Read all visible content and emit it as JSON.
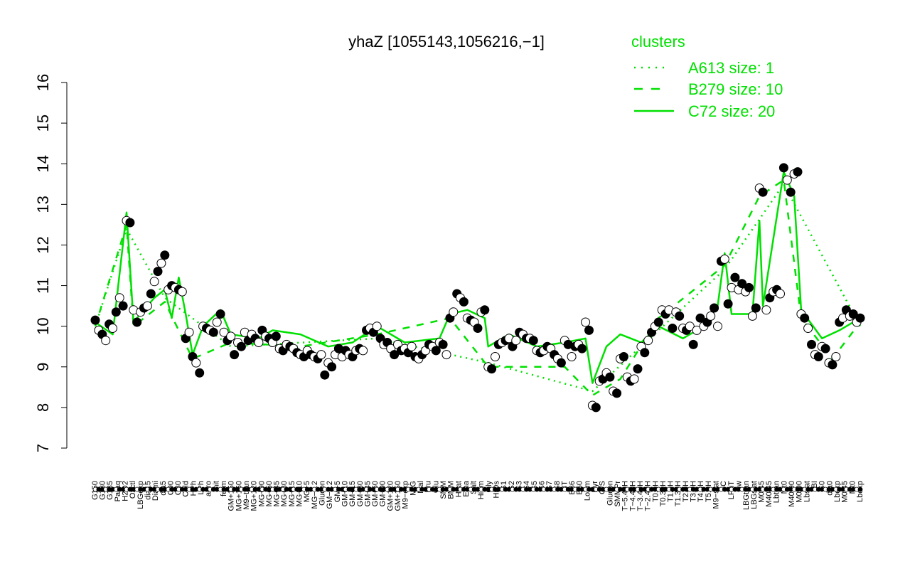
{
  "chart_data": {
    "type": "line",
    "title": "yhaZ [1055143,1056216,−1]",
    "xlabel": "",
    "ylabel": "",
    "ylim": [
      7,
      16
    ],
    "yticks": [
      7,
      8,
      9,
      10,
      11,
      12,
      13,
      14,
      15,
      16
    ],
    "x_tick_labels": [
      "G150",
      "G180",
      "G135",
      "Paraq",
      "H2O2",
      "Oxctl",
      "LBGexp",
      "dia15",
      "Diami",
      "dia5",
      "C90",
      "C30",
      "Cold",
      "HPh",
      "LPh",
      "aero",
      "nit",
      "ferm",
      "GM+150",
      "MG+150",
      "M9−tran",
      "MG+120",
      "MG+90",
      "MG+60",
      "MG+45",
      "MG+30",
      "MG+15",
      "MG+10",
      "MG+5",
      "MG−0.2",
      "Glucon",
      "GM−0.2",
      "GM+5",
      "GM+10",
      "GM+15",
      "GM+30",
      "GM+45",
      "GM+60",
      "GM+90",
      "GM+120",
      "GM+150",
      "M9−exp",
      "M/G",
      "Mal",
      "Fru",
      "Glu",
      "SMM",
      "BMM",
      "Heat",
      "Etha",
      "Salt",
      "HiTm",
      "Gly",
      "HiOs",
      "S1",
      "S2",
      "S3",
      "S4",
      "S5",
      "S6",
      "S7",
      "S8",
      "BT",
      "B36",
      "B60",
      "LoTm",
      "Pyr",
      "G/S",
      "Glucon",
      "SMMPr",
      "T−5.40H",
      "T−4.40H",
      "T−3.40H",
      "T−2.40H",
      "T0.0H",
      "T0.30H",
      "T1.0H",
      "T1.30H",
      "T2.0H",
      "T3.0H",
      "T4.0H",
      "T5.0H",
      "M9−stat",
      "BC",
      "LPhT",
      "Sw",
      "LBGtran",
      "LBGstat",
      "M0t45",
      "M40t45",
      "Lbtran",
      "Mt0",
      "M40t90",
      "M0t90",
      "Lbstat",
      "BI",
      "S0",
      "dia0",
      "Lbexp",
      "M0t45",
      "Mt0",
      "Lbexp"
    ],
    "legend": {
      "title": "clusters",
      "placement": "top-right",
      "entries": [
        {
          "label": "A613 size: 1",
          "style": "dotted"
        },
        {
          "label": "B279 size: 10",
          "style": "dashed"
        },
        {
          "label": "C72 size: 20",
          "style": "solid"
        }
      ]
    },
    "points": [
      [
        1,
        10.15
      ],
      [
        2,
        9.9
      ],
      [
        3,
        9.8
      ],
      [
        4,
        9.65
      ],
      [
        5,
        10.05
      ],
      [
        6,
        9.95
      ],
      [
        7,
        10.35
      ],
      [
        8,
        10.7
      ],
      [
        9,
        10.5
      ],
      [
        10,
        12.6
      ],
      [
        11,
        12.55
      ],
      [
        12,
        10.4
      ],
      [
        13,
        10.1
      ],
      [
        14,
        10.35
      ],
      [
        15,
        10.45
      ],
      [
        16,
        10.5
      ],
      [
        17,
        10.8
      ],
      [
        18,
        11.1
      ],
      [
        19,
        11.35
      ],
      [
        20,
        11.55
      ],
      [
        21,
        11.75
      ],
      [
        22,
        10.9
      ],
      [
        23,
        11.0
      ],
      [
        24,
        10.95
      ],
      [
        25,
        10.9
      ],
      [
        26,
        10.85
      ],
      [
        27,
        9.7
      ],
      [
        28,
        9.85
      ],
      [
        29,
        9.25
      ],
      [
        30,
        9.1
      ],
      [
        31,
        8.85
      ],
      [
        32,
        10.0
      ],
      [
        33,
        9.95
      ],
      [
        34,
        9.9
      ],
      [
        35,
        9.85
      ],
      [
        36,
        10.1
      ],
      [
        37,
        10.3
      ],
      [
        38,
        9.85
      ],
      [
        39,
        9.65
      ],
      [
        40,
        9.75
      ],
      [
        41,
        9.3
      ],
      [
        42,
        9.6
      ],
      [
        43,
        9.5
      ],
      [
        44,
        9.85
      ],
      [
        45,
        9.65
      ],
      [
        46,
        9.8
      ],
      [
        47,
        9.7
      ],
      [
        48,
        9.6
      ],
      [
        49,
        9.9
      ],
      [
        50,
        9.75
      ],
      [
        51,
        9.7
      ],
      [
        52,
        9.6
      ],
      [
        53,
        9.75
      ],
      [
        54,
        9.45
      ],
      [
        55,
        9.4
      ],
      [
        56,
        9.55
      ],
      [
        57,
        9.5
      ],
      [
        58,
        9.45
      ],
      [
        59,
        9.35
      ],
      [
        60,
        9.3
      ],
      [
        61,
        9.25
      ],
      [
        62,
        9.4
      ],
      [
        63,
        9.3
      ],
      [
        64,
        9.25
      ],
      [
        65,
        9.2
      ],
      [
        66,
        9.3
      ],
      [
        67,
        8.8
      ],
      [
        68,
        9.1
      ],
      [
        69,
        9.0
      ],
      [
        70,
        9.3
      ],
      [
        71,
        9.45
      ],
      [
        72,
        9.25
      ],
      [
        73,
        9.4
      ],
      [
        74,
        9.3
      ],
      [
        75,
        9.25
      ],
      [
        76,
        9.4
      ],
      [
        77,
        9.45
      ],
      [
        78,
        9.4
      ],
      [
        79,
        9.9
      ],
      [
        80,
        9.95
      ],
      [
        81,
        9.85
      ],
      [
        82,
        10.0
      ],
      [
        83,
        9.7
      ],
      [
        84,
        9.55
      ],
      [
        85,
        9.6
      ],
      [
        86,
        9.45
      ],
      [
        87,
        9.3
      ],
      [
        88,
        9.55
      ],
      [
        89,
        9.4
      ],
      [
        90,
        9.45
      ],
      [
        91,
        9.35
      ],
      [
        92,
        9.5
      ],
      [
        93,
        9.25
      ],
      [
        94,
        9.2
      ],
      [
        95,
        9.3
      ],
      [
        96,
        9.4
      ],
      [
        97,
        9.55
      ],
      [
        98,
        9.5
      ],
      [
        99,
        9.4
      ],
      [
        100,
        9.6
      ],
      [
        101,
        9.55
      ],
      [
        102,
        9.3
      ],
      [
        103,
        10.2
      ],
      [
        104,
        10.35
      ],
      [
        105,
        10.8
      ],
      [
        106,
        10.7
      ],
      [
        107,
        10.6
      ],
      [
        108,
        10.2
      ],
      [
        109,
        10.15
      ],
      [
        110,
        10.1
      ],
      [
        111,
        9.95
      ],
      [
        112,
        10.35
      ],
      [
        113,
        10.4
      ],
      [
        114,
        9.0
      ],
      [
        115,
        8.95
      ],
      [
        116,
        9.25
      ],
      [
        117,
        9.55
      ],
      [
        118,
        9.6
      ],
      [
        119,
        9.65
      ],
      [
        120,
        9.7
      ],
      [
        121,
        9.5
      ],
      [
        122,
        9.65
      ],
      [
        123,
        9.85
      ],
      [
        124,
        9.8
      ],
      [
        125,
        9.7
      ],
      [
        126,
        9.7
      ],
      [
        127,
        9.65
      ],
      [
        128,
        9.4
      ],
      [
        129,
        9.35
      ],
      [
        130,
        9.4
      ],
      [
        131,
        9.5
      ],
      [
        132,
        9.45
      ],
      [
        133,
        9.3
      ],
      [
        134,
        9.2
      ],
      [
        135,
        9.1
      ],
      [
        136,
        9.65
      ],
      [
        137,
        9.55
      ],
      [
        138,
        9.25
      ],
      [
        139,
        9.5
      ],
      [
        140,
        9.55
      ],
      [
        141,
        9.45
      ],
      [
        142,
        10.1
      ],
      [
        143,
        9.9
      ],
      [
        144,
        8.05
      ],
      [
        145,
        8.0
      ],
      [
        146,
        8.65
      ],
      [
        147,
        8.7
      ],
      [
        148,
        8.85
      ],
      [
        149,
        8.75
      ],
      [
        150,
        8.4
      ],
      [
        151,
        8.35
      ],
      [
        152,
        9.2
      ],
      [
        153,
        9.25
      ],
      [
        154,
        8.75
      ],
      [
        155,
        8.65
      ],
      [
        156,
        8.7
      ],
      [
        157,
        8.95
      ],
      [
        158,
        9.5
      ],
      [
        159,
        9.35
      ],
      [
        160,
        9.65
      ],
      [
        161,
        9.85
      ],
      [
        162,
        10.0
      ],
      [
        163,
        10.1
      ],
      [
        164,
        10.4
      ],
      [
        165,
        10.3
      ],
      [
        166,
        10.4
      ],
      [
        167,
        9.95
      ],
      [
        168,
        10.35
      ],
      [
        169,
        10.25
      ],
      [
        170,
        9.95
      ],
      [
        171,
        9.9
      ],
      [
        172,
        10.0
      ],
      [
        173,
        9.55
      ],
      [
        174,
        9.9
      ],
      [
        175,
        10.2
      ],
      [
        176,
        10.0
      ],
      [
        177,
        10.1
      ],
      [
        178,
        10.25
      ],
      [
        179,
        10.45
      ],
      [
        180,
        10.0
      ],
      [
        181,
        11.6
      ],
      [
        182,
        11.65
      ],
      [
        183,
        10.55
      ],
      [
        184,
        10.95
      ],
      [
        185,
        11.2
      ],
      [
        186,
        10.9
      ],
      [
        187,
        11.05
      ],
      [
        188,
        10.85
      ],
      [
        189,
        10.95
      ],
      [
        190,
        10.25
      ],
      [
        191,
        10.45
      ],
      [
        192,
        13.4
      ],
      [
        193,
        13.3
      ],
      [
        194,
        10.4
      ],
      [
        195,
        10.7
      ],
      [
        196,
        10.85
      ],
      [
        197,
        10.9
      ],
      [
        198,
        10.8
      ],
      [
        199,
        13.9
      ],
      [
        200,
        13.6
      ],
      [
        201,
        13.3
      ],
      [
        202,
        13.75
      ],
      [
        203,
        13.8
      ],
      [
        204,
        10.3
      ],
      [
        205,
        10.2
      ],
      [
        206,
        9.95
      ],
      [
        207,
        9.55
      ],
      [
        208,
        9.3
      ],
      [
        209,
        9.25
      ],
      [
        210,
        9.5
      ],
      [
        211,
        9.45
      ],
      [
        212,
        9.1
      ],
      [
        213,
        9.05
      ],
      [
        214,
        9.25
      ],
      [
        215,
        10.1
      ],
      [
        216,
        10.2
      ],
      [
        217,
        10.4
      ],
      [
        218,
        10.25
      ],
      [
        219,
        10.3
      ],
      [
        220,
        10.1
      ],
      [
        221,
        10.2
      ]
    ],
    "series": [
      {
        "style": "solid",
        "values": [
          [
            1,
            10.1
          ],
          [
            6,
            9.8
          ],
          [
            10,
            12.8
          ],
          [
            12,
            10.1
          ],
          [
            18,
            10.7
          ],
          [
            21,
            10.9
          ],
          [
            23,
            10.2
          ],
          [
            25,
            11.2
          ],
          [
            27,
            10.3
          ],
          [
            29,
            9.3
          ],
          [
            32,
            10.0
          ],
          [
            37,
            10.4
          ],
          [
            40,
            9.8
          ],
          [
            48,
            9.7
          ],
          [
            52,
            9.9
          ],
          [
            60,
            9.8
          ],
          [
            68,
            9.5
          ],
          [
            75,
            9.6
          ],
          [
            82,
            10.0
          ],
          [
            90,
            9.6
          ],
          [
            100,
            9.7
          ],
          [
            103,
            10.3
          ],
          [
            108,
            10.4
          ],
          [
            113,
            10.2
          ],
          [
            114,
            9.5
          ],
          [
            120,
            9.8
          ],
          [
            128,
            9.5
          ],
          [
            136,
            9.6
          ],
          [
            142,
            9.7
          ],
          [
            144,
            8.6
          ],
          [
            148,
            9.5
          ],
          [
            152,
            9.8
          ],
          [
            158,
            9.6
          ],
          [
            163,
            10.0
          ],
          [
            170,
            9.7
          ],
          [
            176,
            10.0
          ],
          [
            180,
            10.5
          ],
          [
            182,
            11.8
          ],
          [
            184,
            10.3
          ],
          [
            190,
            10.3
          ],
          [
            192,
            12.6
          ],
          [
            193,
            10.5
          ],
          [
            199,
            13.8
          ],
          [
            202,
            13.2
          ],
          [
            204,
            10.4
          ],
          [
            210,
            9.7
          ],
          [
            215,
            9.9
          ],
          [
            221,
            10.2
          ]
        ]
      },
      {
        "style": "dashed",
        "values": [
          [
            1,
            10.0
          ],
          [
            10,
            12.5
          ],
          [
            12,
            10.0
          ],
          [
            21,
            10.6
          ],
          [
            29,
            9.2
          ],
          [
            40,
            9.6
          ],
          [
            60,
            9.5
          ],
          [
            82,
            9.8
          ],
          [
            103,
            10.2
          ],
          [
            114,
            9.0
          ],
          [
            136,
            9.0
          ],
          [
            144,
            8.3
          ],
          [
            152,
            8.7
          ],
          [
            163,
            10.2
          ],
          [
            182,
            11.5
          ],
          [
            192,
            13.2
          ],
          [
            199,
            13.6
          ],
          [
            204,
            10.2
          ],
          [
            213,
            9.2
          ],
          [
            221,
            10.1
          ]
        ]
      },
      {
        "style": "dotted",
        "values": [
          [
            1,
            10.0
          ],
          [
            10,
            12.4
          ],
          [
            21,
            10.7
          ],
          [
            40,
            9.5
          ],
          [
            82,
            9.7
          ],
          [
            114,
            9.1
          ],
          [
            144,
            8.4
          ],
          [
            182,
            11.4
          ],
          [
            199,
            13.5
          ],
          [
            221,
            10.0
          ]
        ]
      }
    ]
  }
}
